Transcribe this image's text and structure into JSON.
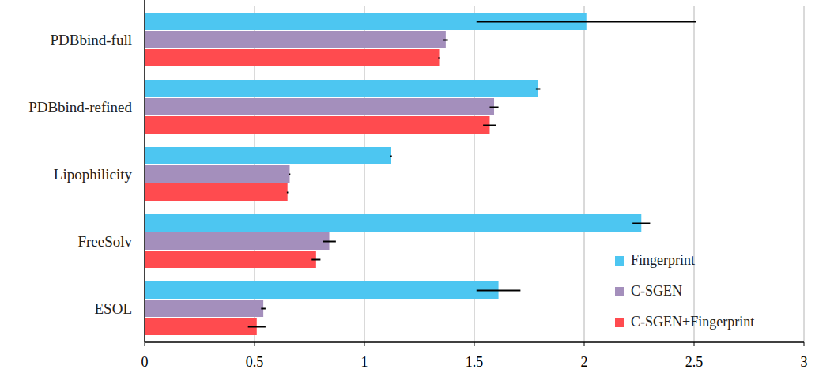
{
  "chart_data": {
    "type": "bar",
    "orientation": "horizontal",
    "categories": [
      "PDBbind-full",
      "PDBbind-refined",
      "Lipophilicity",
      "FreeSolv",
      "ESOL"
    ],
    "series": [
      {
        "name": "Fingerprint",
        "color": "#4dc6f1",
        "values": [
          2.01,
          1.79,
          1.12,
          2.26,
          1.61
        ],
        "errors": [
          0.5,
          0.01,
          0.005,
          0.04,
          0.1
        ]
      },
      {
        "name": "C-SGEN",
        "color": "#a48fbc",
        "values": [
          1.37,
          1.59,
          0.66,
          0.84,
          0.54
        ],
        "errors": [
          0.01,
          0.02,
          0.003,
          0.03,
          0.01
        ]
      },
      {
        "name": "C-SGEN+Fingerprint",
        "color": "#ff4b4f",
        "values": [
          1.34,
          1.57,
          0.65,
          0.78,
          0.51
        ],
        "errors": [
          0.005,
          0.03,
          0.003,
          0.02,
          0.04
        ]
      }
    ],
    "xlim": [
      0,
      3
    ],
    "xticks": [
      0,
      0.5,
      1,
      1.5,
      2,
      2.5,
      3
    ],
    "grid": true,
    "legend": "lower right"
  }
}
